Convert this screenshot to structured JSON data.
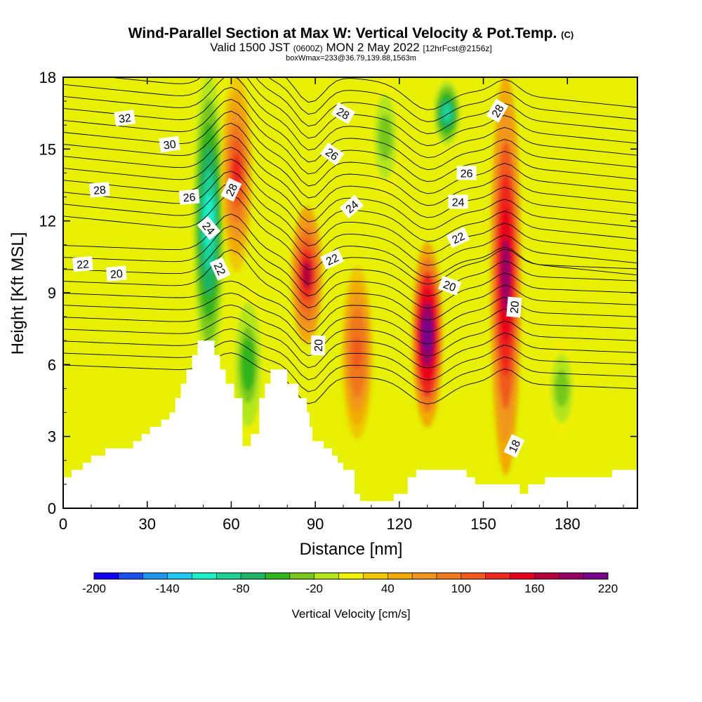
{
  "header": {
    "title": "Wind-Parallel Section at Max W: Vertical Velocity & Pot.Temp.",
    "title_mark": "(C)",
    "valid_prefix": "Valid 1500 JST",
    "valid_utc": "(0600Z)",
    "valid_date": "MON 2 May 2022",
    "forecast": "[12hrFcst@2156z]",
    "box_info": "boxWmax=233@36.79,139.88,1563m"
  },
  "chart_data": {
    "type": "heatmap",
    "xlabel": "Distance [nm]",
    "ylabel": "Height [Kft MSL]",
    "xlim": [
      0,
      205
    ],
    "ylim": [
      0,
      18
    ],
    "x_ticks": [
      "0",
      "30",
      "60",
      "90",
      "120",
      "150",
      "180"
    ],
    "y_ticks": [
      "0",
      "3",
      "6",
      "9",
      "12",
      "15",
      "18"
    ],
    "background_color": "#e6f000",
    "updraft_cores": [
      {
        "x": 62,
        "ymin": 10,
        "ymax": 18,
        "peak": 130
      },
      {
        "x": 87,
        "ymin": 7,
        "ymax": 12.5,
        "peak": 160
      },
      {
        "x": 105,
        "ymin": 3,
        "ymax": 10,
        "peak": 110
      },
      {
        "x": 130,
        "ymin": 3.5,
        "ymax": 11,
        "peak": 220
      },
      {
        "x": 158,
        "ymin": 1.5,
        "ymax": 18,
        "peak": 180
      }
    ],
    "downdraft_cores": [
      {
        "x": 52,
        "ymin": 6,
        "ymax": 18,
        "peak": -120
      },
      {
        "x": 66,
        "ymin": 3,
        "ymax": 9,
        "peak": -60
      },
      {
        "x": 115,
        "ymin": 13,
        "ymax": 18,
        "peak": -40
      },
      {
        "x": 137,
        "ymin": 15,
        "ymax": 18,
        "peak": -100
      },
      {
        "x": 178,
        "ymin": 3,
        "ymax": 7,
        "peak": -40
      }
    ],
    "terrain": [
      [
        0,
        1.3
      ],
      [
        3,
        1.3
      ],
      [
        3,
        1.6
      ],
      [
        7,
        1.6
      ],
      [
        7,
        1.9
      ],
      [
        10,
        1.9
      ],
      [
        10,
        2.2
      ],
      [
        15,
        2.2
      ],
      [
        15,
        2.5
      ],
      [
        25,
        2.5
      ],
      [
        25,
        2.8
      ],
      [
        28,
        2.8
      ],
      [
        28,
        3.1
      ],
      [
        31,
        3.1
      ],
      [
        31,
        3.4
      ],
      [
        35,
        3.4
      ],
      [
        35,
        3.7
      ],
      [
        38,
        3.7
      ],
      [
        38,
        4.0
      ],
      [
        40,
        4.0
      ],
      [
        40,
        4.6
      ],
      [
        42,
        4.6
      ],
      [
        42,
        5.2
      ],
      [
        44,
        5.2
      ],
      [
        44,
        5.8
      ],
      [
        46,
        5.8
      ],
      [
        46,
        6.4
      ],
      [
        48,
        6.4
      ],
      [
        48,
        7.0
      ],
      [
        54,
        7.0
      ],
      [
        54,
        6.4
      ],
      [
        56,
        6.4
      ],
      [
        56,
        5.8
      ],
      [
        58,
        5.8
      ],
      [
        58,
        5.2
      ],
      [
        61,
        5.2
      ],
      [
        61,
        4.6
      ],
      [
        64,
        4.6
      ],
      [
        64,
        2.6
      ],
      [
        67,
        2.6
      ],
      [
        67,
        3.1
      ],
      [
        70,
        3.1
      ],
      [
        70,
        4.6
      ],
      [
        72,
        4.6
      ],
      [
        72,
        5.2
      ],
      [
        74,
        5.2
      ],
      [
        74,
        5.8
      ],
      [
        80,
        5.8
      ],
      [
        80,
        5.2
      ],
      [
        84,
        5.2
      ],
      [
        84,
        4.6
      ],
      [
        87,
        4.6
      ],
      [
        87,
        4.0
      ],
      [
        88,
        4.0
      ],
      [
        88,
        3.4
      ],
      [
        89,
        3.4
      ],
      [
        89,
        2.8
      ],
      [
        93,
        2.8
      ],
      [
        93,
        2.5
      ],
      [
        96,
        2.5
      ],
      [
        96,
        2.2
      ],
      [
        98,
        2.2
      ],
      [
        98,
        1.9
      ],
      [
        100,
        1.9
      ],
      [
        100,
        1.6
      ],
      [
        104,
        1.6
      ],
      [
        104,
        0.6
      ],
      [
        106,
        0.6
      ],
      [
        106,
        0.3
      ],
      [
        118,
        0.3
      ],
      [
        118,
        0.6
      ],
      [
        123,
        0.6
      ],
      [
        123,
        1.3
      ],
      [
        126,
        1.3
      ],
      [
        126,
        1.6
      ],
      [
        144,
        1.6
      ],
      [
        144,
        1.3
      ],
      [
        147,
        1.3
      ],
      [
        147,
        1.0
      ],
      [
        163,
        1.0
      ],
      [
        163,
        0.6
      ],
      [
        166,
        0.6
      ],
      [
        166,
        1.0
      ],
      [
        172,
        1.0
      ],
      [
        172,
        1.3
      ],
      [
        196,
        1.3
      ],
      [
        196,
        1.6
      ],
      [
        205,
        1.6
      ],
      [
        205,
        0
      ],
      [
        0,
        0
      ]
    ],
    "contour_labels": [
      {
        "text": "32",
        "x": 22,
        "y": 16.3,
        "angle": -8
      },
      {
        "text": "30",
        "x": 38,
        "y": 15.2,
        "angle": -8
      },
      {
        "text": "28",
        "x": 13,
        "y": 13.3,
        "angle": -5
      },
      {
        "text": "26",
        "x": 45,
        "y": 13.0,
        "angle": -5
      },
      {
        "text": "28",
        "x": 60,
        "y": 13.3,
        "angle": -65
      },
      {
        "text": "24",
        "x": 52,
        "y": 11.7,
        "angle": 50
      },
      {
        "text": "22",
        "x": 56,
        "y": 10.0,
        "angle": 65
      },
      {
        "text": "22",
        "x": 7,
        "y": 10.2,
        "angle": -5
      },
      {
        "text": "20",
        "x": 19,
        "y": 9.8,
        "angle": -5
      },
      {
        "text": "28",
        "x": 100,
        "y": 16.5,
        "angle": 30
      },
      {
        "text": "26",
        "x": 96,
        "y": 14.8,
        "angle": 35
      },
      {
        "text": "24",
        "x": 103,
        "y": 12.6,
        "angle": -40
      },
      {
        "text": "22",
        "x": 96,
        "y": 10.4,
        "angle": -25
      },
      {
        "text": "20",
        "x": 91,
        "y": 6.8,
        "angle": -88
      },
      {
        "text": "26",
        "x": 144,
        "y": 14.0,
        "angle": 0
      },
      {
        "text": "24",
        "x": 141,
        "y": 12.8,
        "angle": 0
      },
      {
        "text": "22",
        "x": 141,
        "y": 11.3,
        "angle": -25
      },
      {
        "text": "20",
        "x": 138,
        "y": 9.3,
        "angle": 20
      },
      {
        "text": "28",
        "x": 155,
        "y": 16.6,
        "angle": -60
      },
      {
        "text": "20",
        "x": 161,
        "y": 8.4,
        "angle": -85
      },
      {
        "text": "18",
        "x": 161,
        "y": 2.6,
        "angle": -65
      }
    ],
    "colorbar": {
      "title": "Vertical Velocity [cm/s]",
      "labels": [
        "-200",
        "-140",
        "-80",
        "-20",
        "40",
        "100",
        "160",
        "220"
      ],
      "colors": [
        "#1400f0",
        "#1e50f0",
        "#1e96f0",
        "#1ec8f0",
        "#1ef0c8",
        "#1ed296",
        "#1eb464",
        "#32b41e",
        "#78c81e",
        "#b4e61e",
        "#f0f000",
        "#f0c800",
        "#f0aa00",
        "#f0961e",
        "#f0781e",
        "#f05a1e",
        "#f0281e",
        "#e6001e",
        "#b4003c",
        "#960064",
        "#78008c"
      ]
    }
  }
}
